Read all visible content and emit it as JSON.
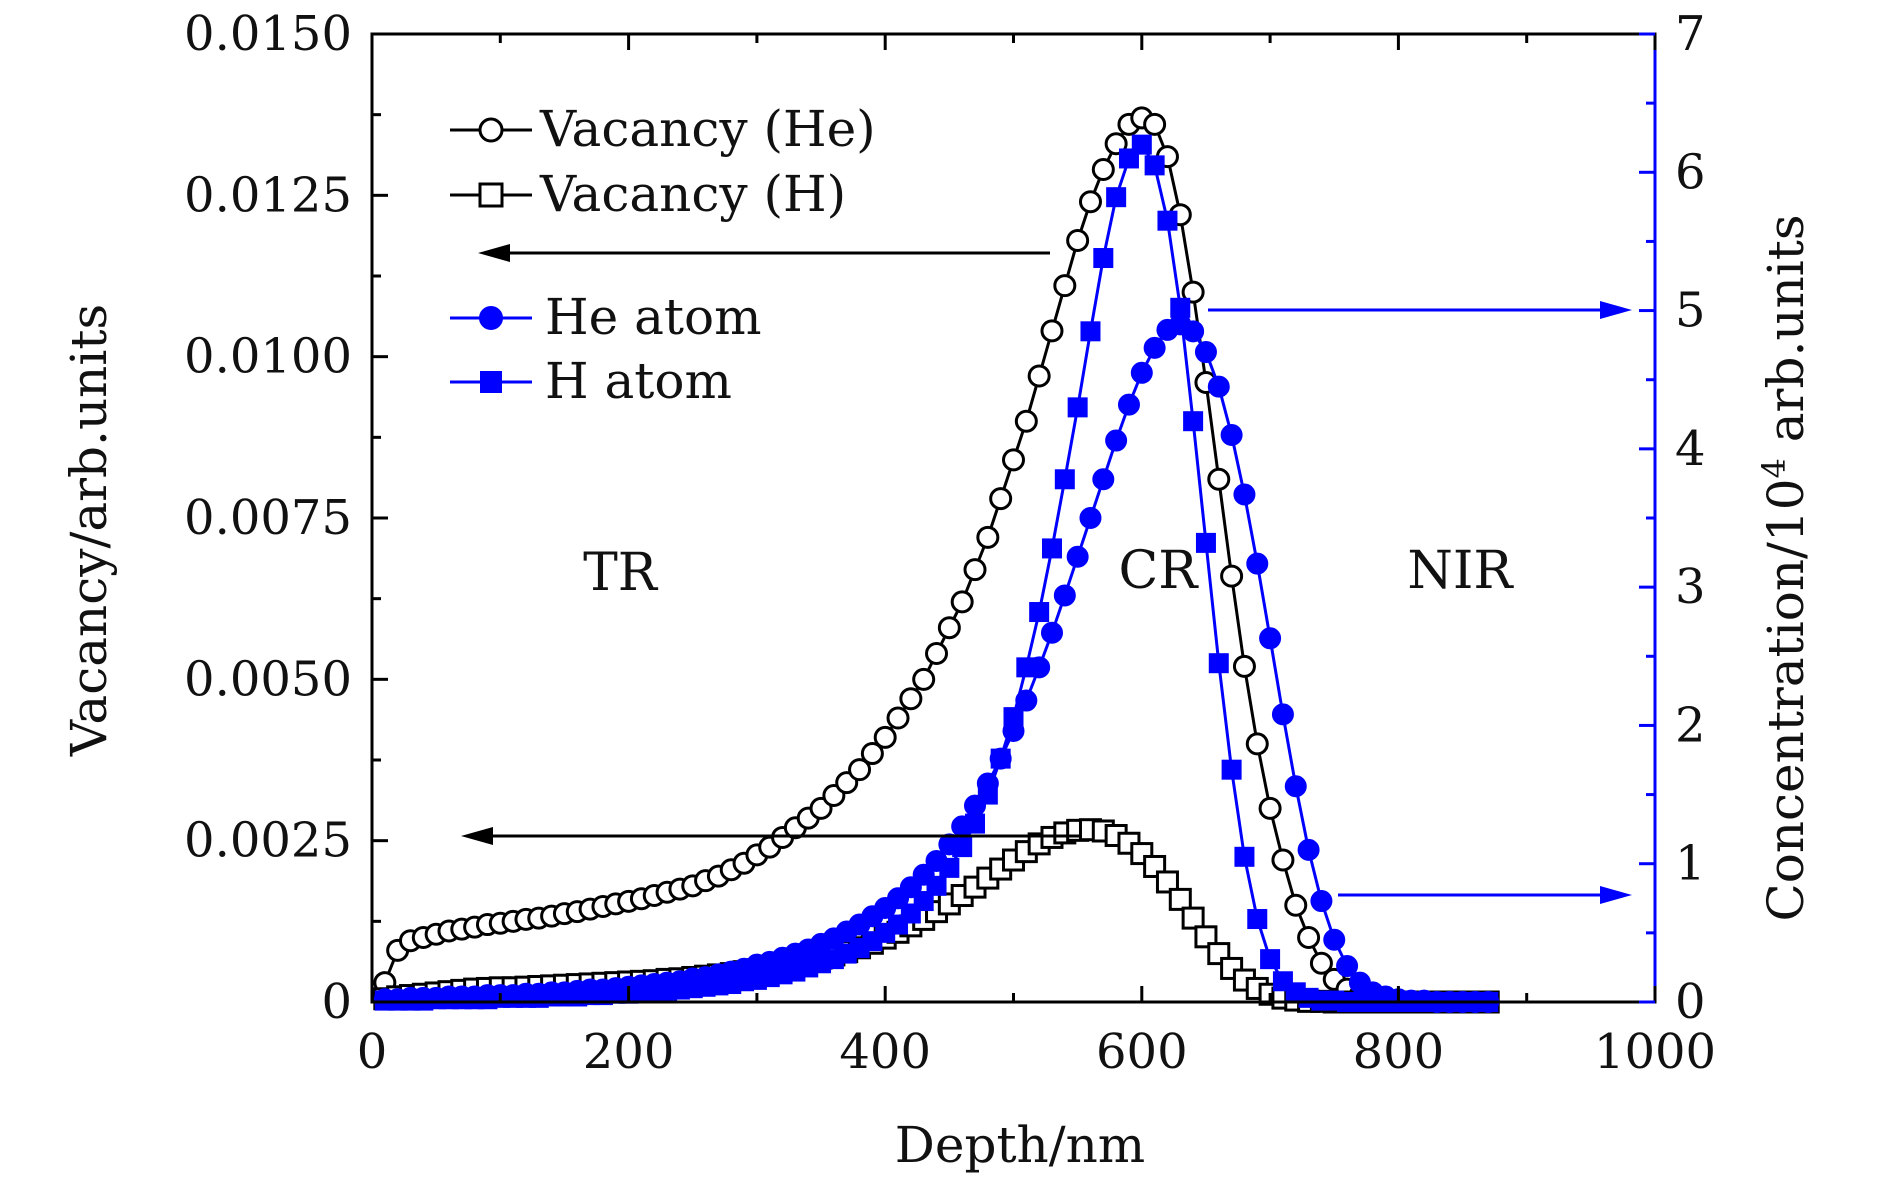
{
  "chart_data": {
    "type": "scatter",
    "title": "",
    "xlabel": "Depth/nm",
    "ylabel_left": "Vacancy/arb.units",
    "ylabel_right_prefix": "Concentration/10",
    "ylabel_right_sup": "4",
    "ylabel_right_suffix": " arb.units",
    "xlim": [
      0,
      1000
    ],
    "ylim_left": [
      0,
      0.015
    ],
    "ylim_right": [
      0,
      7
    ],
    "x_ticks": [
      "0",
      "200",
      "400",
      "600",
      "800",
      "1000"
    ],
    "y_left_ticks": [
      "0",
      "0.0025",
      "0.0050",
      "0.0075",
      "0.0100",
      "0.0125",
      "0.0150"
    ],
    "y_right_ticks": [
      "0",
      "1",
      "2",
      "3",
      "4",
      "5",
      "6",
      "7"
    ],
    "grid": false,
    "legend_position": "top-left",
    "series": [
      {
        "name": "Vacancy (He)",
        "axis": "left",
        "color": "#000000",
        "marker": "circle-open",
        "x": [
          10,
          20,
          30,
          40,
          50,
          60,
          70,
          80,
          90,
          100,
          110,
          120,
          130,
          140,
          150,
          160,
          170,
          180,
          190,
          200,
          210,
          220,
          230,
          240,
          250,
          260,
          270,
          280,
          290,
          300,
          310,
          320,
          330,
          340,
          350,
          360,
          370,
          380,
          390,
          400,
          410,
          420,
          430,
          440,
          450,
          460,
          470,
          480,
          490,
          500,
          510,
          520,
          530,
          540,
          550,
          560,
          570,
          580,
          590,
          600,
          610,
          620,
          630,
          640,
          650,
          660,
          670,
          680,
          690,
          700,
          710,
          720,
          730,
          740,
          750,
          760,
          770,
          780,
          790,
          800,
          810,
          820,
          830,
          840,
          850,
          860,
          870
        ],
        "y": [
          0.0003,
          0.0008,
          0.00095,
          0.001,
          0.00105,
          0.0011,
          0.00113,
          0.00116,
          0.0012,
          0.00122,
          0.00125,
          0.00128,
          0.0013,
          0.00133,
          0.00137,
          0.0014,
          0.00144,
          0.00148,
          0.00152,
          0.00156,
          0.0016,
          0.00165,
          0.0017,
          0.00175,
          0.0018,
          0.00188,
          0.00195,
          0.00205,
          0.00215,
          0.00228,
          0.0024,
          0.00255,
          0.0027,
          0.00285,
          0.003,
          0.0032,
          0.0034,
          0.0036,
          0.00385,
          0.0041,
          0.0044,
          0.0047,
          0.005,
          0.0054,
          0.0058,
          0.0062,
          0.0067,
          0.0072,
          0.0078,
          0.0084,
          0.009,
          0.0097,
          0.0104,
          0.0111,
          0.0118,
          0.0124,
          0.0129,
          0.0133,
          0.0136,
          0.0137,
          0.0136,
          0.0131,
          0.0122,
          0.011,
          0.0096,
          0.0081,
          0.0066,
          0.0052,
          0.004,
          0.003,
          0.0022,
          0.0015,
          0.001,
          0.0006,
          0.00035,
          0.0002,
          0.0001,
          5e-05,
          3e-05,
          2e-05,
          1e-05,
          1e-05,
          0,
          0,
          0,
          0,
          0
        ]
      },
      {
        "name": "Vacancy (H)",
        "axis": "left",
        "color": "#000000",
        "marker": "square-open",
        "x": [
          10,
          20,
          30,
          40,
          50,
          60,
          70,
          80,
          90,
          100,
          110,
          120,
          130,
          140,
          150,
          160,
          170,
          180,
          190,
          200,
          210,
          220,
          230,
          240,
          250,
          260,
          270,
          280,
          290,
          300,
          310,
          320,
          330,
          340,
          350,
          360,
          370,
          380,
          390,
          400,
          410,
          420,
          430,
          440,
          450,
          460,
          470,
          480,
          490,
          500,
          510,
          520,
          530,
          540,
          550,
          560,
          570,
          580,
          590,
          600,
          610,
          620,
          630,
          640,
          650,
          660,
          670,
          680,
          690,
          700,
          710,
          720,
          730,
          740,
          750,
          760,
          770,
          780,
          790,
          800,
          810,
          820,
          830,
          840,
          850,
          860,
          870
        ],
        "y": [
          5e-05,
          8e-05,
          0.0001,
          0.00012,
          0.00014,
          0.00016,
          0.00018,
          0.0002,
          0.00021,
          0.00022,
          0.00022,
          0.00023,
          0.00024,
          0.00025,
          0.00026,
          0.00027,
          0.00028,
          0.00029,
          0.0003,
          0.00031,
          0.00032,
          0.00033,
          0.00035,
          0.00036,
          0.00038,
          0.0004,
          0.00042,
          0.00044,
          0.00047,
          0.0005,
          0.00053,
          0.00056,
          0.0006,
          0.00064,
          0.00068,
          0.00073,
          0.00078,
          0.00084,
          0.00091,
          0.00099,
          0.00108,
          0.00118,
          0.00128,
          0.0014,
          0.00152,
          0.00165,
          0.00178,
          0.00192,
          0.00206,
          0.0022,
          0.00233,
          0.00245,
          0.00255,
          0.00262,
          0.00266,
          0.00267,
          0.00265,
          0.00258,
          0.00246,
          0.0023,
          0.0021,
          0.00186,
          0.00159,
          0.0013,
          0.00101,
          0.00075,
          0.00052,
          0.00034,
          0.00021,
          0.00012,
          6e-05,
          3e-05,
          1e-05,
          1e-05,
          0,
          0,
          0,
          0,
          0,
          0,
          0,
          0,
          0,
          0,
          0,
          0,
          0
        ]
      },
      {
        "name": "He atom",
        "axis": "right",
        "color": "#0000ff",
        "marker": "circle-filled",
        "x": [
          10,
          20,
          30,
          40,
          50,
          60,
          70,
          80,
          90,
          100,
          110,
          120,
          130,
          140,
          150,
          160,
          170,
          180,
          190,
          200,
          210,
          220,
          230,
          240,
          250,
          260,
          270,
          280,
          290,
          300,
          310,
          320,
          330,
          340,
          350,
          360,
          370,
          380,
          390,
          400,
          410,
          420,
          430,
          440,
          450,
          460,
          470,
          480,
          490,
          500,
          510,
          520,
          530,
          540,
          550,
          560,
          570,
          580,
          590,
          600,
          610,
          620,
          630,
          640,
          650,
          660,
          670,
          680,
          690,
          700,
          710,
          720,
          730,
          740,
          750,
          760,
          770,
          780,
          790,
          800,
          810,
          820,
          830,
          840,
          850,
          860,
          870
        ],
        "y": [
          0.02,
          0.02,
          0.03,
          0.03,
          0.03,
          0.04,
          0.04,
          0.04,
          0.05,
          0.05,
          0.05,
          0.06,
          0.06,
          0.07,
          0.07,
          0.08,
          0.09,
          0.09,
          0.1,
          0.11,
          0.12,
          0.13,
          0.14,
          0.15,
          0.17,
          0.18,
          0.2,
          0.22,
          0.24,
          0.27,
          0.29,
          0.32,
          0.35,
          0.38,
          0.42,
          0.46,
          0.51,
          0.56,
          0.62,
          0.68,
          0.75,
          0.83,
          0.92,
          1.02,
          1.14,
          1.27,
          1.42,
          1.58,
          1.76,
          1.96,
          2.18,
          2.42,
          2.67,
          2.94,
          3.22,
          3.5,
          3.78,
          4.06,
          4.32,
          4.55,
          4.73,
          4.86,
          4.9,
          4.85,
          4.7,
          4.45,
          4.1,
          3.67,
          3.17,
          2.63,
          2.08,
          1.56,
          1.1,
          0.73,
          0.45,
          0.26,
          0.14,
          0.07,
          0.04,
          0.02,
          0.01,
          0.01,
          0,
          0,
          0,
          0,
          0
        ]
      },
      {
        "name": "H atom",
        "axis": "right",
        "color": "#0000ff",
        "marker": "square-filled",
        "x": [
          10,
          20,
          30,
          40,
          50,
          60,
          70,
          80,
          90,
          100,
          110,
          120,
          130,
          140,
          150,
          160,
          170,
          180,
          190,
          200,
          210,
          220,
          230,
          240,
          250,
          260,
          270,
          280,
          290,
          300,
          310,
          320,
          330,
          340,
          350,
          360,
          370,
          380,
          390,
          400,
          410,
          420,
          430,
          440,
          450,
          460,
          470,
          480,
          490,
          500,
          510,
          520,
          530,
          540,
          550,
          560,
          570,
          580,
          590,
          600,
          610,
          620,
          630,
          640,
          650,
          660,
          670,
          680,
          690,
          700,
          710,
          720,
          730,
          740,
          750,
          760,
          770,
          780,
          790,
          800,
          810,
          820,
          830,
          840,
          850,
          860,
          870
        ],
        "y": [
          0.01,
          0.01,
          0.01,
          0.01,
          0.02,
          0.02,
          0.02,
          0.02,
          0.02,
          0.03,
          0.03,
          0.03,
          0.03,
          0.04,
          0.04,
          0.04,
          0.05,
          0.05,
          0.06,
          0.06,
          0.07,
          0.07,
          0.08,
          0.09,
          0.1,
          0.11,
          0.12,
          0.13,
          0.15,
          0.16,
          0.18,
          0.2,
          0.22,
          0.25,
          0.28,
          0.31,
          0.35,
          0.39,
          0.44,
          0.5,
          0.56,
          0.64,
          0.73,
          0.84,
          0.97,
          1.12,
          1.29,
          1.5,
          1.76,
          2.06,
          2.42,
          2.82,
          3.28,
          3.78,
          4.3,
          4.85,
          5.38,
          5.82,
          6.1,
          6.2,
          6.05,
          5.65,
          5.02,
          4.2,
          3.32,
          2.45,
          1.68,
          1.05,
          0.6,
          0.31,
          0.15,
          0.07,
          0.03,
          0.01,
          0.01,
          0,
          0,
          0,
          0,
          0,
          0,
          0,
          0,
          0,
          0,
          0,
          0
        ]
      }
    ],
    "annotations": [
      "TR",
      "CR",
      "NIR"
    ]
  }
}
